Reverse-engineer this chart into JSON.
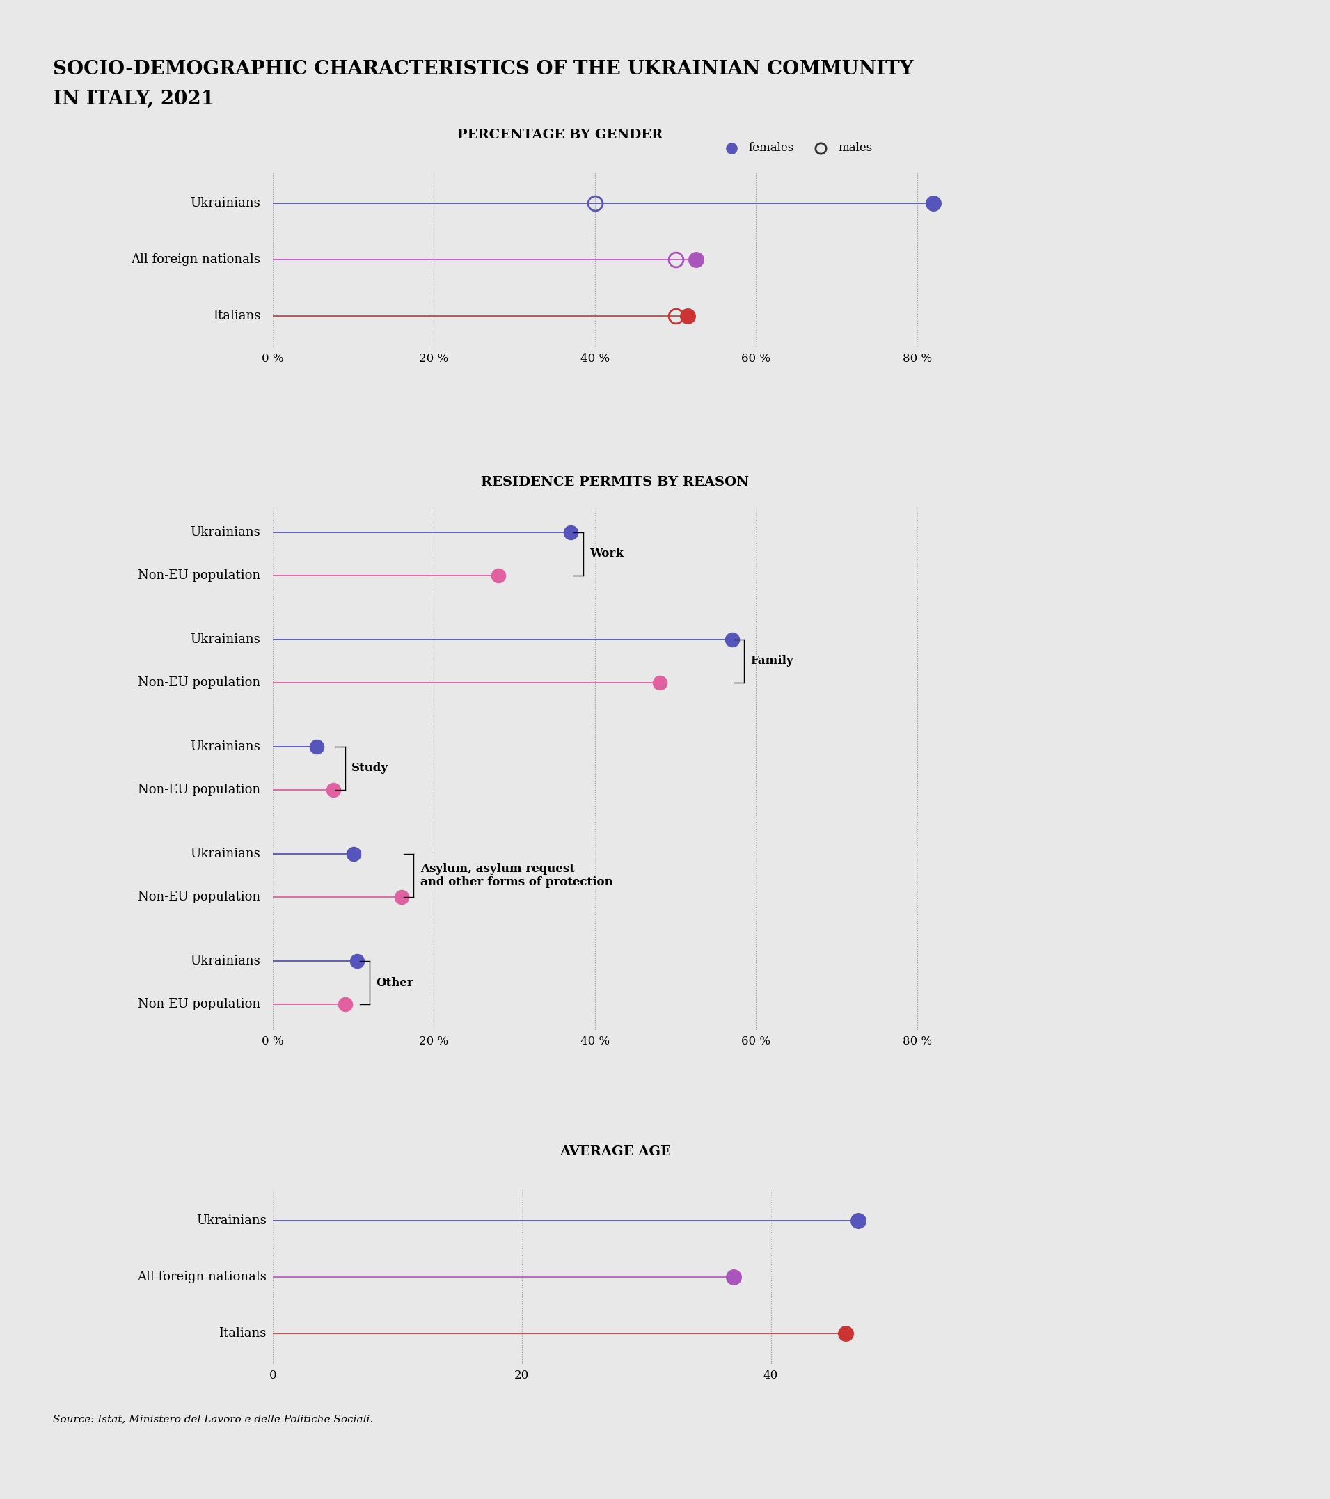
{
  "title_line1": "SOCIO-DEMOGRAPHIC CHARACTERISTICS OF THE UKRAINIAN COMMUNITY",
  "title_line2": "IN ITALY, 2021",
  "bg_color": "#e8e8e8",
  "chart1_title": "PERCENTAGE BY GENDER",
  "chart1_legend_females": "females",
  "chart1_legend_males": "males",
  "chart1_rows": [
    "Ukrainians",
    "All foreign nationals",
    "Italians"
  ],
  "chart1_females": [
    82.0,
    52.5,
    51.5
  ],
  "chart1_males": [
    40.0,
    50.0,
    50.0
  ],
  "chart1_female_colors": [
    "#5555bb",
    "#aa55bb",
    "#cc3333"
  ],
  "chart1_male_colors": [
    "#5555bb",
    "#aa55bb",
    "#cc3333"
  ],
  "chart1_line_colors": [
    "#5555bb",
    "#cc55cc",
    "#cc4444"
  ],
  "chart1_xlim": [
    0,
    85
  ],
  "chart1_xticks": [
    0,
    20,
    40,
    60,
    80
  ],
  "chart1_xtick_labels": [
    "0 %",
    "20 %",
    "40 %",
    "60 %",
    "80 %"
  ],
  "chart2_title": "RESIDENCE PERMITS BY REASON",
  "chart2_groups": [
    {
      "label": "Work",
      "rows": [
        "Ukrainians",
        "Non-EU population"
      ],
      "values": [
        37.0,
        28.0
      ],
      "colors": [
        "#5555bb",
        "#e060a0"
      ]
    },
    {
      "label": "Family",
      "rows": [
        "Ukrainians",
        "Non-EU population"
      ],
      "values": [
        57.0,
        48.0
      ],
      "colors": [
        "#5555bb",
        "#e060a0"
      ]
    },
    {
      "label": "Study",
      "rows": [
        "Ukrainians",
        "Non-EU population"
      ],
      "values": [
        5.5,
        7.5
      ],
      "colors": [
        "#5555bb",
        "#e060a0"
      ]
    },
    {
      "label": "Asylum, asylum request\nand other forms of protection",
      "rows": [
        "Ukrainians",
        "Non-EU population"
      ],
      "values": [
        10.0,
        16.0
      ],
      "colors": [
        "#5555bb",
        "#e060a0"
      ]
    },
    {
      "label": "Other",
      "rows": [
        "Ukrainians",
        "Non-EU population"
      ],
      "values": [
        10.5,
        9.0
      ],
      "colors": [
        "#5555bb",
        "#e060a0"
      ]
    }
  ],
  "chart2_xlim": [
    0,
    85
  ],
  "chart2_xticks": [
    0,
    20,
    40,
    60,
    80
  ],
  "chart2_xtick_labels": [
    "0 %",
    "20 %",
    "40 %",
    "60 %",
    "80 %"
  ],
  "chart3_title": "AVERAGE AGE",
  "chart3_rows": [
    "Ukrainians",
    "All foreign nationals",
    "Italians"
  ],
  "chart3_values": [
    47.0,
    37.0,
    46.0
  ],
  "chart3_colors": [
    "#5555bb",
    "#aa55bb",
    "#cc3333"
  ],
  "chart3_line_colors": [
    "#5555bb",
    "#cc55cc",
    "#cc4444"
  ],
  "chart3_xlim": [
    0,
    55
  ],
  "chart3_xticks": [
    0,
    20,
    40
  ],
  "chart3_xtick_labels": [
    "0",
    "20",
    "40"
  ],
  "source_text": "Source: Istat, Ministero del Lavoro e delle Politiche Sociali."
}
